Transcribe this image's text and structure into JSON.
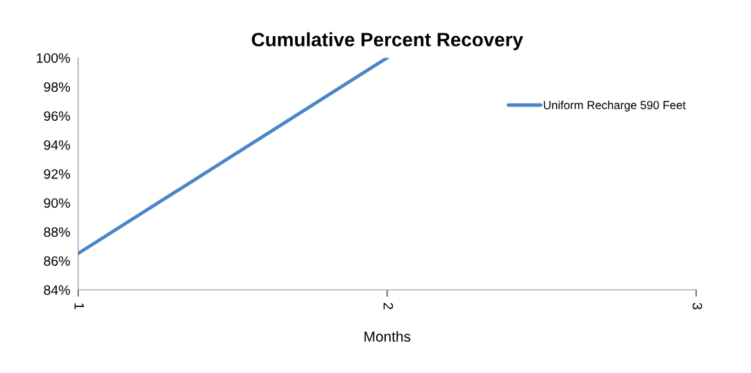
{
  "chart_data": {
    "type": "line",
    "title": "Cumulative Percent Recovery",
    "xlabel": "Months",
    "x": [
      1,
      2
    ],
    "series": [
      {
        "name": "Uniform Recharge 590 Feet",
        "color": "#4a86c8",
        "values": [
          86.5,
          100
        ]
      }
    ],
    "xlim": [
      1,
      3
    ],
    "xticks": [
      1,
      2,
      3
    ],
    "ylim": [
      84,
      100
    ],
    "yticks": [
      {
        "value": 84,
        "label": "84%"
      },
      {
        "value": 86,
        "label": "86%"
      },
      {
        "value": 88,
        "label": "88%"
      },
      {
        "value": 90,
        "label": "90%"
      },
      {
        "value": 92,
        "label": "92%"
      },
      {
        "value": 94,
        "label": "94%"
      },
      {
        "value": 96,
        "label": "96%"
      },
      {
        "value": 98,
        "label": "98%"
      },
      {
        "value": 100,
        "label": "100%"
      }
    ],
    "legend": "top right",
    "grid": false,
    "marker": "none",
    "line_style": "solid"
  }
}
